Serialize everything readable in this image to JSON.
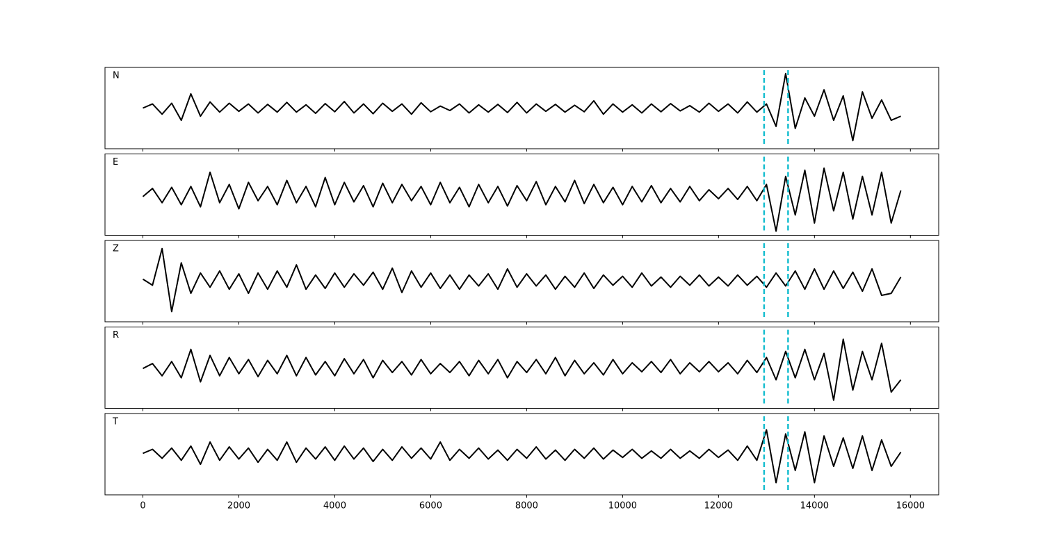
{
  "chart_data": {
    "type": "line",
    "x": [
      0,
      200,
      400,
      600,
      800,
      1000,
      1200,
      1400,
      1600,
      1800,
      2000,
      2200,
      2400,
      2600,
      2800,
      3000,
      3200,
      3400,
      3600,
      3800,
      4000,
      4200,
      4400,
      4600,
      4800,
      5000,
      5200,
      5400,
      5600,
      5800,
      6000,
      6200,
      6400,
      6600,
      6800,
      7000,
      7200,
      7400,
      7600,
      7800,
      8000,
      8200,
      8400,
      8600,
      8800,
      9000,
      9200,
      9400,
      9600,
      9800,
      10000,
      10200,
      10400,
      10600,
      10800,
      11000,
      11200,
      11400,
      11600,
      11800,
      12000,
      12200,
      12400,
      12600,
      12800,
      13000,
      13200,
      13400,
      13600,
      13800,
      14000,
      14200,
      14400,
      14600,
      14800,
      15000,
      15200,
      15400,
      15600,
      15800
    ],
    "xlim": [
      -790,
      16590
    ],
    "xticks": [
      0,
      2000,
      4000,
      6000,
      8000,
      10000,
      12000,
      14000,
      16000
    ],
    "ylim": [
      -1,
      1
    ],
    "vlines": [
      12950,
      13450
    ],
    "vline_color": "#17becf",
    "series": [
      {
        "name": "N",
        "color": "#000000",
        "values": [
          0,
          0.1,
          -0.15,
          0.12,
          -0.3,
          0.35,
          -0.2,
          0.15,
          -0.1,
          0.12,
          -0.08,
          0.1,
          -0.12,
          0.09,
          -0.1,
          0.14,
          -0.1,
          0.08,
          -0.13,
          0.11,
          -0.09,
          0.16,
          -0.12,
          0.1,
          -0.14,
          0.12,
          -0.08,
          0.1,
          -0.15,
          0.13,
          -0.09,
          0.05,
          -0.06,
          0.1,
          -0.12,
          0.08,
          -0.1,
          0.09,
          -0.11,
          0.14,
          -0.12,
          0.1,
          -0.08,
          0.09,
          -0.1,
          0.07,
          -0.09,
          0.18,
          -0.15,
          0.1,
          -0.1,
          0.08,
          -0.12,
          0.1,
          -0.09,
          0.11,
          -0.07,
          0.06,
          -0.1,
          0.12,
          -0.08,
          0.1,
          -0.12,
          0.15,
          -0.1,
          0.1,
          -0.45,
          0.85,
          -0.5,
          0.25,
          -0.2,
          0.45,
          -0.3,
          0.3,
          -0.8,
          0.4,
          -0.25,
          0.2,
          -0.3,
          -0.2
        ]
      },
      {
        "name": "E",
        "color": "#000000",
        "values": [
          -0.05,
          0.15,
          -0.2,
          0.18,
          -0.25,
          0.2,
          -0.3,
          0.55,
          -0.2,
          0.25,
          -0.35,
          0.3,
          -0.15,
          0.2,
          -0.25,
          0.35,
          -0.2,
          0.2,
          -0.3,
          0.42,
          -0.25,
          0.3,
          -0.18,
          0.22,
          -0.3,
          0.28,
          -0.2,
          0.25,
          -0.15,
          0.2,
          -0.25,
          0.3,
          -0.2,
          0.18,
          -0.3,
          0.25,
          -0.2,
          0.2,
          -0.28,
          0.22,
          -0.15,
          0.32,
          -0.25,
          0.2,
          -0.18,
          0.35,
          -0.22,
          0.25,
          -0.2,
          0.18,
          -0.25,
          0.2,
          -0.18,
          0.22,
          -0.2,
          0.15,
          -0.18,
          0.2,
          -0.15,
          0.12,
          -0.1,
          0.15,
          -0.12,
          0.2,
          -0.15,
          0.25,
          -0.9,
          0.45,
          -0.5,
          0.6,
          -0.7,
          0.65,
          -0.4,
          0.55,
          -0.6,
          0.45,
          -0.5,
          0.55,
          -0.7,
          0.1
        ]
      },
      {
        "name": "Z",
        "color": "#000000",
        "values": [
          0.05,
          -0.1,
          0.8,
          -0.75,
          0.45,
          -0.3,
          0.2,
          -0.15,
          0.25,
          -0.2,
          0.18,
          -0.3,
          0.2,
          -0.2,
          0.25,
          -0.15,
          0.4,
          -0.2,
          0.15,
          -0.18,
          0.2,
          -0.15,
          0.18,
          -0.1,
          0.22,
          -0.2,
          0.32,
          -0.28,
          0.25,
          -0.15,
          0.2,
          -0.18,
          0.15,
          -0.2,
          0.15,
          -0.12,
          0.18,
          -0.2,
          0.3,
          -0.15,
          0.18,
          -0.12,
          0.15,
          -0.2,
          0.12,
          -0.15,
          0.2,
          -0.18,
          0.15,
          -0.1,
          0.12,
          -0.15,
          0.2,
          -0.12,
          0.1,
          -0.15,
          0.12,
          -0.1,
          0.15,
          -0.12,
          0.1,
          -0.12,
          0.15,
          -0.1,
          0.12,
          -0.15,
          0.2,
          -0.12,
          0.25,
          -0.2,
          0.3,
          -0.2,
          0.25,
          -0.18,
          0.22,
          -0.25,
          0.3,
          -0.35,
          -0.3,
          0.1
        ]
      },
      {
        "name": "R",
        "color": "#000000",
        "values": [
          -0.02,
          0.1,
          -0.2,
          0.15,
          -0.25,
          0.45,
          -0.35,
          0.3,
          -0.2,
          0.25,
          -0.15,
          0.2,
          -0.22,
          0.18,
          -0.15,
          0.3,
          -0.2,
          0.25,
          -0.18,
          0.15,
          -0.2,
          0.22,
          -0.15,
          0.2,
          -0.25,
          0.18,
          -0.12,
          0.15,
          -0.18,
          0.2,
          -0.15,
          0.1,
          -0.12,
          0.15,
          -0.2,
          0.18,
          -0.15,
          0.2,
          -0.25,
          0.15,
          -0.12,
          0.2,
          -0.15,
          0.25,
          -0.2,
          0.18,
          -0.15,
          0.12,
          -0.18,
          0.2,
          -0.15,
          0.12,
          -0.1,
          0.15,
          -0.12,
          0.2,
          -0.15,
          0.12,
          -0.1,
          0.15,
          -0.1,
          0.12,
          -0.15,
          0.18,
          -0.12,
          0.25,
          -0.3,
          0.4,
          -0.25,
          0.45,
          -0.3,
          0.35,
          -0.8,
          0.7,
          -0.55,
          0.4,
          -0.3,
          0.6,
          -0.6,
          -0.3
        ]
      },
      {
        "name": "T",
        "color": "#000000",
        "values": [
          0.02,
          0.12,
          -0.1,
          0.15,
          -0.15,
          0.2,
          -0.25,
          0.3,
          -0.15,
          0.18,
          -0.12,
          0.15,
          -0.2,
          0.12,
          -0.15,
          0.3,
          -0.2,
          0.15,
          -0.12,
          0.18,
          -0.15,
          0.2,
          -0.12,
          0.15,
          -0.18,
          0.12,
          -0.15,
          0.18,
          -0.1,
          0.15,
          -0.12,
          0.3,
          -0.15,
          0.12,
          -0.1,
          0.15,
          -0.12,
          0.1,
          -0.15,
          0.12,
          -0.1,
          0.18,
          -0.12,
          0.1,
          -0.15,
          0.12,
          -0.1,
          0.15,
          -0.12,
          0.1,
          -0.08,
          0.12,
          -0.1,
          0.08,
          -0.1,
          0.12,
          -0.1,
          0.08,
          -0.1,
          0.12,
          -0.08,
          0.1,
          -0.15,
          0.2,
          -0.15,
          0.6,
          -0.7,
          0.5,
          -0.4,
          0.55,
          -0.7,
          0.45,
          -0.3,
          0.4,
          -0.35,
          0.45,
          -0.4,
          0.35,
          -0.3,
          0.05
        ]
      }
    ]
  }
}
